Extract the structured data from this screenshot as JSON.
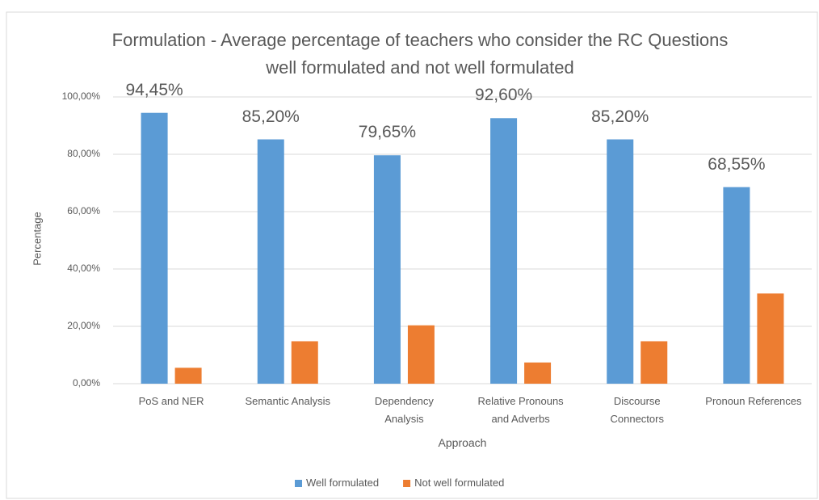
{
  "chart_data": {
    "type": "bar",
    "title": "Formulation - Average percentage of teachers who consider the RC Questions well formulated and not well formulated",
    "x_label": "Approach",
    "y_label": "Percentage",
    "categories": [
      "PoS and NER",
      "Semantic Analysis",
      "Dependency Analysis",
      "Relative Pronouns and Adverbs",
      "Discourse Connectors",
      "Pronoun References"
    ],
    "series": [
      {
        "name": "Well formulated",
        "color": "#5b9bd5",
        "values": [
          94.45,
          85.2,
          79.65,
          92.6,
          85.2,
          68.55
        ],
        "value_labels": [
          "94,45%",
          "85,20%",
          "79,65%",
          "92,60%",
          "85,20%",
          "68,55%"
        ]
      },
      {
        "name": "Not well formulated",
        "color": "#ed7d31",
        "values": [
          5.55,
          14.8,
          20.35,
          7.4,
          14.8,
          31.45
        ]
      }
    ],
    "ylim": [
      0,
      100
    ],
    "yticks": [
      {
        "value": 0,
        "label": "0,00%"
      },
      {
        "value": 20,
        "label": "20,00%"
      },
      {
        "value": 40,
        "label": "40,00%"
      },
      {
        "value": 60,
        "label": "60,00%"
      },
      {
        "value": 80,
        "label": "80,00%"
      },
      {
        "value": 100,
        "label": "100,00%"
      }
    ],
    "grid": true,
    "legend": "bottom"
  }
}
